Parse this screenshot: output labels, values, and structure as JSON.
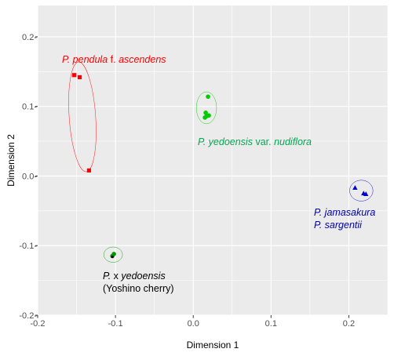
{
  "chart_data": {
    "type": "scatter",
    "title": "",
    "xlabel": "Dimension 1",
    "ylabel": "Dimension 2",
    "xlim": [
      -0.2,
      0.25
    ],
    "ylim": [
      -0.2,
      0.245
    ],
    "x_ticks": [
      -0.2,
      -0.1,
      0.0,
      0.1,
      0.2
    ],
    "y_ticks": [
      -0.2,
      -0.1,
      0.0,
      0.1,
      0.2
    ],
    "x_tick_labels": [
      "-0.2",
      "-0.1",
      "0.0",
      "0.1",
      "0.2"
    ],
    "y_tick_labels": [
      "-0.2-",
      "-0.1-",
      "0.0-",
      "0.1-",
      "0.2-"
    ],
    "grid": true,
    "legend": "none",
    "background": "#ebebeb",
    "gridline_color": "#ffffff",
    "series": [
      {
        "id": "pendula",
        "color": "#ff0000",
        "marker": "square",
        "points": [
          [
            -0.153,
            0.145
          ],
          [
            -0.146,
            0.142
          ],
          [
            -0.134,
            0.008
          ]
        ],
        "ellipse": {
          "cx": -0.1425,
          "cy": 0.085,
          "rx": 0.017,
          "ry": 0.079,
          "angle_deg": -4
        }
      },
      {
        "id": "nudiflora",
        "color": "#00cc00",
        "marker": "circle",
        "points": [
          [
            0.019,
            0.114
          ],
          [
            0.016,
            0.091
          ],
          [
            0.017,
            0.086
          ],
          [
            0.02,
            0.087
          ],
          [
            0.015,
            0.084
          ]
        ],
        "ellipse": {
          "cx": 0.017,
          "cy": 0.098,
          "rx": 0.013,
          "ry": 0.023,
          "angle_deg": 0
        }
      },
      {
        "id": "jamasakura-sargentii",
        "color": "#0000cc",
        "marker": "triangle",
        "points": [
          [
            0.208,
            -0.017
          ],
          [
            0.219,
            -0.025
          ],
          [
            0.222,
            -0.026
          ]
        ],
        "ellipse": {
          "cx": 0.216,
          "cy": -0.021,
          "rx": 0.015,
          "ry": 0.015,
          "angle_deg": 0
        }
      },
      {
        "id": "yedoensis",
        "color": "#009900",
        "marker": "circle",
        "points": [
          [
            -0.102,
            -0.112
          ],
          [
            -0.104,
            -0.115
          ]
        ],
        "ellipse": {
          "cx": -0.103,
          "cy": -0.113,
          "rx": 0.012,
          "ry": 0.011,
          "angle_deg": 0
        },
        "extra_markers": [
          {
            "point": [
              -0.104,
              -0.116
            ],
            "color": "#000000",
            "marker": "dot"
          }
        ]
      }
    ],
    "annotations": [
      {
        "id": "pendula",
        "color": "#ff0000",
        "parts": [
          {
            "text": "P. pendula",
            "italic": true
          },
          {
            "text": " f. ",
            "italic": false
          },
          {
            "text": "ascendens",
            "italic": true
          }
        ]
      },
      {
        "id": "nudiflora",
        "color": "#00a651",
        "parts": [
          {
            "text": "P. yedoensis",
            "italic": true
          },
          {
            "text": " var. ",
            "italic": false
          },
          {
            "text": "nudiflora",
            "italic": true
          }
        ]
      },
      {
        "id": "jamasakura",
        "color": "#0000aa",
        "parts": [
          {
            "text": "P. jamasakura",
            "italic": true
          }
        ]
      },
      {
        "id": "sargentii",
        "color": "#0000aa",
        "parts": [
          {
            "text": "P. sargentii",
            "italic": true
          }
        ]
      },
      {
        "id": "yedoensis",
        "color": "#000000",
        "parts": [
          {
            "text": "P.",
            "italic": true
          },
          {
            "text": " x ",
            "italic": false
          },
          {
            "text": "yedoensis",
            "italic": true
          }
        ]
      },
      {
        "id": "yoshino",
        "color": "#000000",
        "parts": [
          {
            "text": "(Yoshino cherry)",
            "italic": false
          }
        ]
      }
    ]
  }
}
